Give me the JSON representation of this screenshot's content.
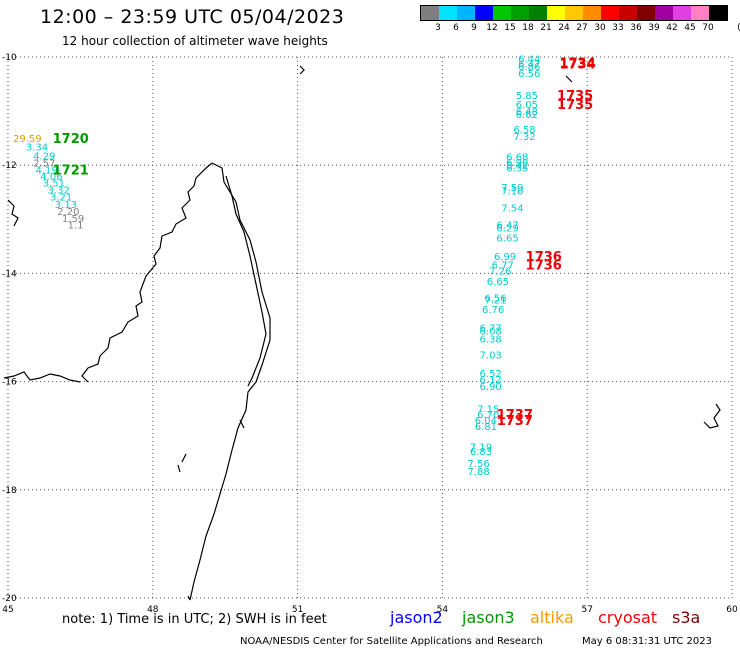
{
  "title": "12:00 – 23:59 UTC 05/04/2023",
  "subtitle": "12 hour collection of altimeter wave heights",
  "color_scale": {
    "unit_label": "(ft)",
    "bins": [
      {
        "label": "3",
        "color": "#7f7f7f"
      },
      {
        "label": "6",
        "color": "#00e5ff"
      },
      {
        "label": "9",
        "color": "#00b4ff"
      },
      {
        "label": "12",
        "color": "#0000ff"
      },
      {
        "label": "15",
        "color": "#00c800"
      },
      {
        "label": "18",
        "color": "#00a000"
      },
      {
        "label": "21",
        "color": "#008000"
      },
      {
        "label": "24",
        "color": "#ffff00"
      },
      {
        "label": "27",
        "color": "#ffc800"
      },
      {
        "label": "30",
        "color": "#ff8c00"
      },
      {
        "label": "33",
        "color": "#ff0000"
      },
      {
        "label": "36",
        "color": "#c80000"
      },
      {
        "label": "39",
        "color": "#800000"
      },
      {
        "label": "42",
        "color": "#a000a0"
      },
      {
        "label": "45",
        "color": "#e040e0"
      },
      {
        "label": "70",
        "color": "#ff80c0"
      },
      {
        "label": "",
        "color": "#000000"
      }
    ]
  },
  "axes": {
    "lon_ticks": [
      "45",
      "48",
      "51",
      "54",
      "57",
      "60"
    ],
    "lat_ticks": [
      "-10",
      "-12",
      "-14",
      "-16",
      "-18",
      "-20"
    ]
  },
  "chart_data": {
    "type": "scatter",
    "x_axis": "longitude",
    "y_axis": "latitude",
    "xlim": [
      45,
      60
    ],
    "ylim": [
      -20,
      -10
    ],
    "grid": true,
    "series": [
      {
        "name": "jason3",
        "color": "#00cccc",
        "points": [
          {
            "lon": 45.4,
            "lat": -11.5,
            "label": "29.59",
            "color": "#e0a000"
          },
          {
            "lon": 45.6,
            "lat": -11.65,
            "label": "3.34"
          },
          {
            "lon": 45.75,
            "lat": -11.82,
            "label": "4.29"
          },
          {
            "lon": 45.75,
            "lat": -11.95,
            "label": "2.57",
            "color": "#808080"
          },
          {
            "lon": 45.8,
            "lat": -12.08,
            "label": "4.19"
          },
          {
            "lon": 45.9,
            "lat": -12.2,
            "label": "4.06"
          },
          {
            "lon": 45.95,
            "lat": -12.32,
            "label": "3.51"
          },
          {
            "lon": 46.05,
            "lat": -12.45,
            "label": "3.32"
          },
          {
            "lon": 46.1,
            "lat": -12.58,
            "label": "3.21"
          },
          {
            "lon": 46.2,
            "lat": -12.72,
            "label": "3.13"
          },
          {
            "lon": 46.25,
            "lat": -12.85,
            "label": "2.20",
            "color": "#808080"
          },
          {
            "lon": 46.35,
            "lat": -12.98,
            "label": "1.59",
            "color": "#808080"
          },
          {
            "lon": 46.4,
            "lat": -13.1,
            "label": "1.1",
            "color": "#808080"
          }
        ],
        "time_labels": [
          {
            "lon": 46.3,
            "lat": -11.5,
            "label": "1720"
          },
          {
            "lon": 46.3,
            "lat": -12.08,
            "label": "1721"
          }
        ]
      },
      {
        "name": "cryosat",
        "color": "#00cccc",
        "points": [
          {
            "lon": 55.8,
            "lat": -10.03,
            "label": "6.44"
          },
          {
            "lon": 55.8,
            "lat": -10.12,
            "label": "6.47"
          },
          {
            "lon": 55.8,
            "lat": -10.17,
            "label": "6.86"
          },
          {
            "lon": 55.8,
            "lat": -10.3,
            "label": "6.56"
          },
          {
            "lon": 55.75,
            "lat": -10.7,
            "label": "5.85"
          },
          {
            "lon": 55.75,
            "lat": -10.87,
            "label": "6.05"
          },
          {
            "lon": 55.75,
            "lat": -11.0,
            "label": "6.48"
          },
          {
            "lon": 55.75,
            "lat": -11.05,
            "label": "6.62"
          },
          {
            "lon": 55.7,
            "lat": -11.33,
            "label": "6.58"
          },
          {
            "lon": 55.7,
            "lat": -11.46,
            "label": "7.32"
          },
          {
            "lon": 55.55,
            "lat": -11.84,
            "label": "6.68"
          },
          {
            "lon": 55.55,
            "lat": -11.94,
            "label": "6.90"
          },
          {
            "lon": 55.55,
            "lat": -12.0,
            "label": "6.42"
          },
          {
            "lon": 55.55,
            "lat": -12.04,
            "label": "6.35"
          },
          {
            "lon": 55.45,
            "lat": -12.4,
            "label": "7.59"
          },
          {
            "lon": 55.45,
            "lat": -12.47,
            "label": "7.10"
          },
          {
            "lon": 55.45,
            "lat": -12.78,
            "label": "7.54"
          },
          {
            "lon": 55.35,
            "lat": -13.1,
            "label": "6.47"
          },
          {
            "lon": 55.35,
            "lat": -13.15,
            "label": "6.29"
          },
          {
            "lon": 55.35,
            "lat": -13.34,
            "label": "6.65"
          },
          {
            "lon": 55.3,
            "lat": -13.68,
            "label": "6.99"
          },
          {
            "lon": 55.25,
            "lat": -13.84,
            "label": "6.77"
          },
          {
            "lon": 55.2,
            "lat": -13.95,
            "label": "7.26"
          },
          {
            "lon": 55.15,
            "lat": -14.14,
            "label": "6.65"
          },
          {
            "lon": 55.1,
            "lat": -14.45,
            "label": "6.56"
          },
          {
            "lon": 55.1,
            "lat": -14.48,
            "label": "7.21"
          },
          {
            "lon": 55.05,
            "lat": -14.66,
            "label": "6.76"
          },
          {
            "lon": 55.0,
            "lat": -15.0,
            "label": "6.77"
          },
          {
            "lon": 55.0,
            "lat": -15.06,
            "label": "6.08"
          },
          {
            "lon": 55.0,
            "lat": -15.2,
            "label": "6.38"
          },
          {
            "lon": 55.0,
            "lat": -15.5,
            "label": "7.03"
          },
          {
            "lon": 55.0,
            "lat": -15.84,
            "label": "6.52"
          },
          {
            "lon": 55.0,
            "lat": -15.95,
            "label": "6.12"
          },
          {
            "lon": 55.0,
            "lat": -16.08,
            "label": "6.90"
          },
          {
            "lon": 54.95,
            "lat": -16.5,
            "label": "7.15"
          },
          {
            "lon": 54.95,
            "lat": -16.6,
            "label": "6.70"
          },
          {
            "lon": 54.9,
            "lat": -16.71,
            "label": "6.04"
          },
          {
            "lon": 54.9,
            "lat": -16.82,
            "label": "6.81"
          },
          {
            "lon": 54.8,
            "lat": -17.2,
            "label": "7.19"
          },
          {
            "lon": 54.8,
            "lat": -17.28,
            "label": "6.83"
          },
          {
            "lon": 54.75,
            "lat": -17.5,
            "label": "7.56"
          },
          {
            "lon": 54.75,
            "lat": -17.65,
            "label": "7.88"
          }
        ],
        "time_labels": [
          {
            "lon": 56.8,
            "lat": -10.1,
            "label": "1734"
          },
          {
            "lon": 56.8,
            "lat": -10.12,
            "label": "1734"
          },
          {
            "lon": 56.75,
            "lat": -10.7,
            "label": "1735"
          },
          {
            "lon": 56.75,
            "lat": -10.87,
            "label": "1735"
          },
          {
            "lon": 56.1,
            "lat": -13.68,
            "label": "1736"
          },
          {
            "lon": 56.1,
            "lat": -13.84,
            "label": "1736"
          },
          {
            "lon": 55.5,
            "lat": -16.6,
            "label": "1737"
          },
          {
            "lon": 55.5,
            "lat": -16.71,
            "label": "1737"
          }
        ]
      }
    ]
  },
  "note": "note: 1) Time is in UTC; 2) SWH is in feet",
  "legend": [
    {
      "label": "jason2",
      "color": "#0000ff"
    },
    {
      "label": "jason3",
      "color": "#009900"
    },
    {
      "label": "altika",
      "color": "#ff9900"
    },
    {
      "label": "cryosat",
      "color": "#ff0000"
    },
    {
      "label": "s3a",
      "color": "#800000"
    }
  ],
  "credit": "NOAA/NESDIS Center for Satellite Applications and Research",
  "timestamp": "May  6 08:31:31 UTC 2023"
}
